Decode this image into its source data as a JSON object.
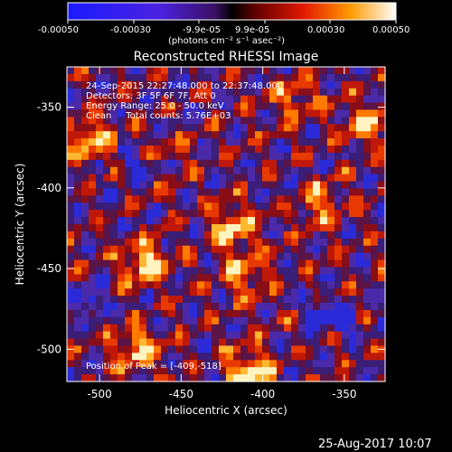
{
  "colorbar": {
    "tick_labels": [
      "-0.00050",
      "-0.00030",
      "-9.9e-05",
      "9.9e-05",
      "0.00030",
      "0.00050"
    ],
    "unit_label": "(photons cm⁻² s⁻¹ asec⁻²)"
  },
  "chart_data": {
    "type": "heatmap",
    "title": "Reconstructed RHESSI Image",
    "xlabel": "Heliocentric X (arcsec)",
    "ylabel": "Heliocentric Y (arcsec)",
    "xlim": [
      -520,
      -325
    ],
    "ylim": [
      -520,
      -325
    ],
    "xticks": [
      -500,
      -450,
      -400,
      -350
    ],
    "yticks": [
      -500,
      -450,
      -400,
      -350
    ],
    "clim": [
      -0.0005,
      0.0005
    ],
    "annotations": [
      "24-Sep-2015 22:27:48.000 to 22:37:48.000",
      "Detectors: 3F 5F 6F 7F, Att 0",
      "Energy Range: 25.0 - 50.0 keV",
      "Clean     Total counts: 5.76E+03"
    ],
    "peak_label": "Position of Peak = [-409,-518]",
    "hot_spots": [
      {
        "x": -409,
        "y": -515,
        "amp": 1.0
      },
      {
        "x": -472,
        "y": -447,
        "amp": 0.8
      },
      {
        "x": -478,
        "y": -500,
        "amp": 0.72
      },
      {
        "x": -420,
        "y": -425,
        "amp": 0.7
      },
      {
        "x": -505,
        "y": -370,
        "amp": 0.65
      },
      {
        "x": -410,
        "y": -455,
        "amp": 0.6
      },
      {
        "x": -365,
        "y": -410,
        "amp": 0.55
      },
      {
        "x": -335,
        "y": -360,
        "amp": 0.6
      },
      {
        "x": -460,
        "y": -385,
        "amp": 0.5
      },
      {
        "x": -380,
        "y": -345,
        "amp": 0.5
      }
    ],
    "cold_spots": [
      {
        "x": -478,
        "y": -387
      },
      {
        "x": -463,
        "y": -387
      },
      {
        "x": -505,
        "y": -470
      },
      {
        "x": -365,
        "y": -478
      },
      {
        "x": -350,
        "y": -483
      }
    ]
  },
  "footer": {
    "date": "25-Aug-2017 10:07"
  }
}
